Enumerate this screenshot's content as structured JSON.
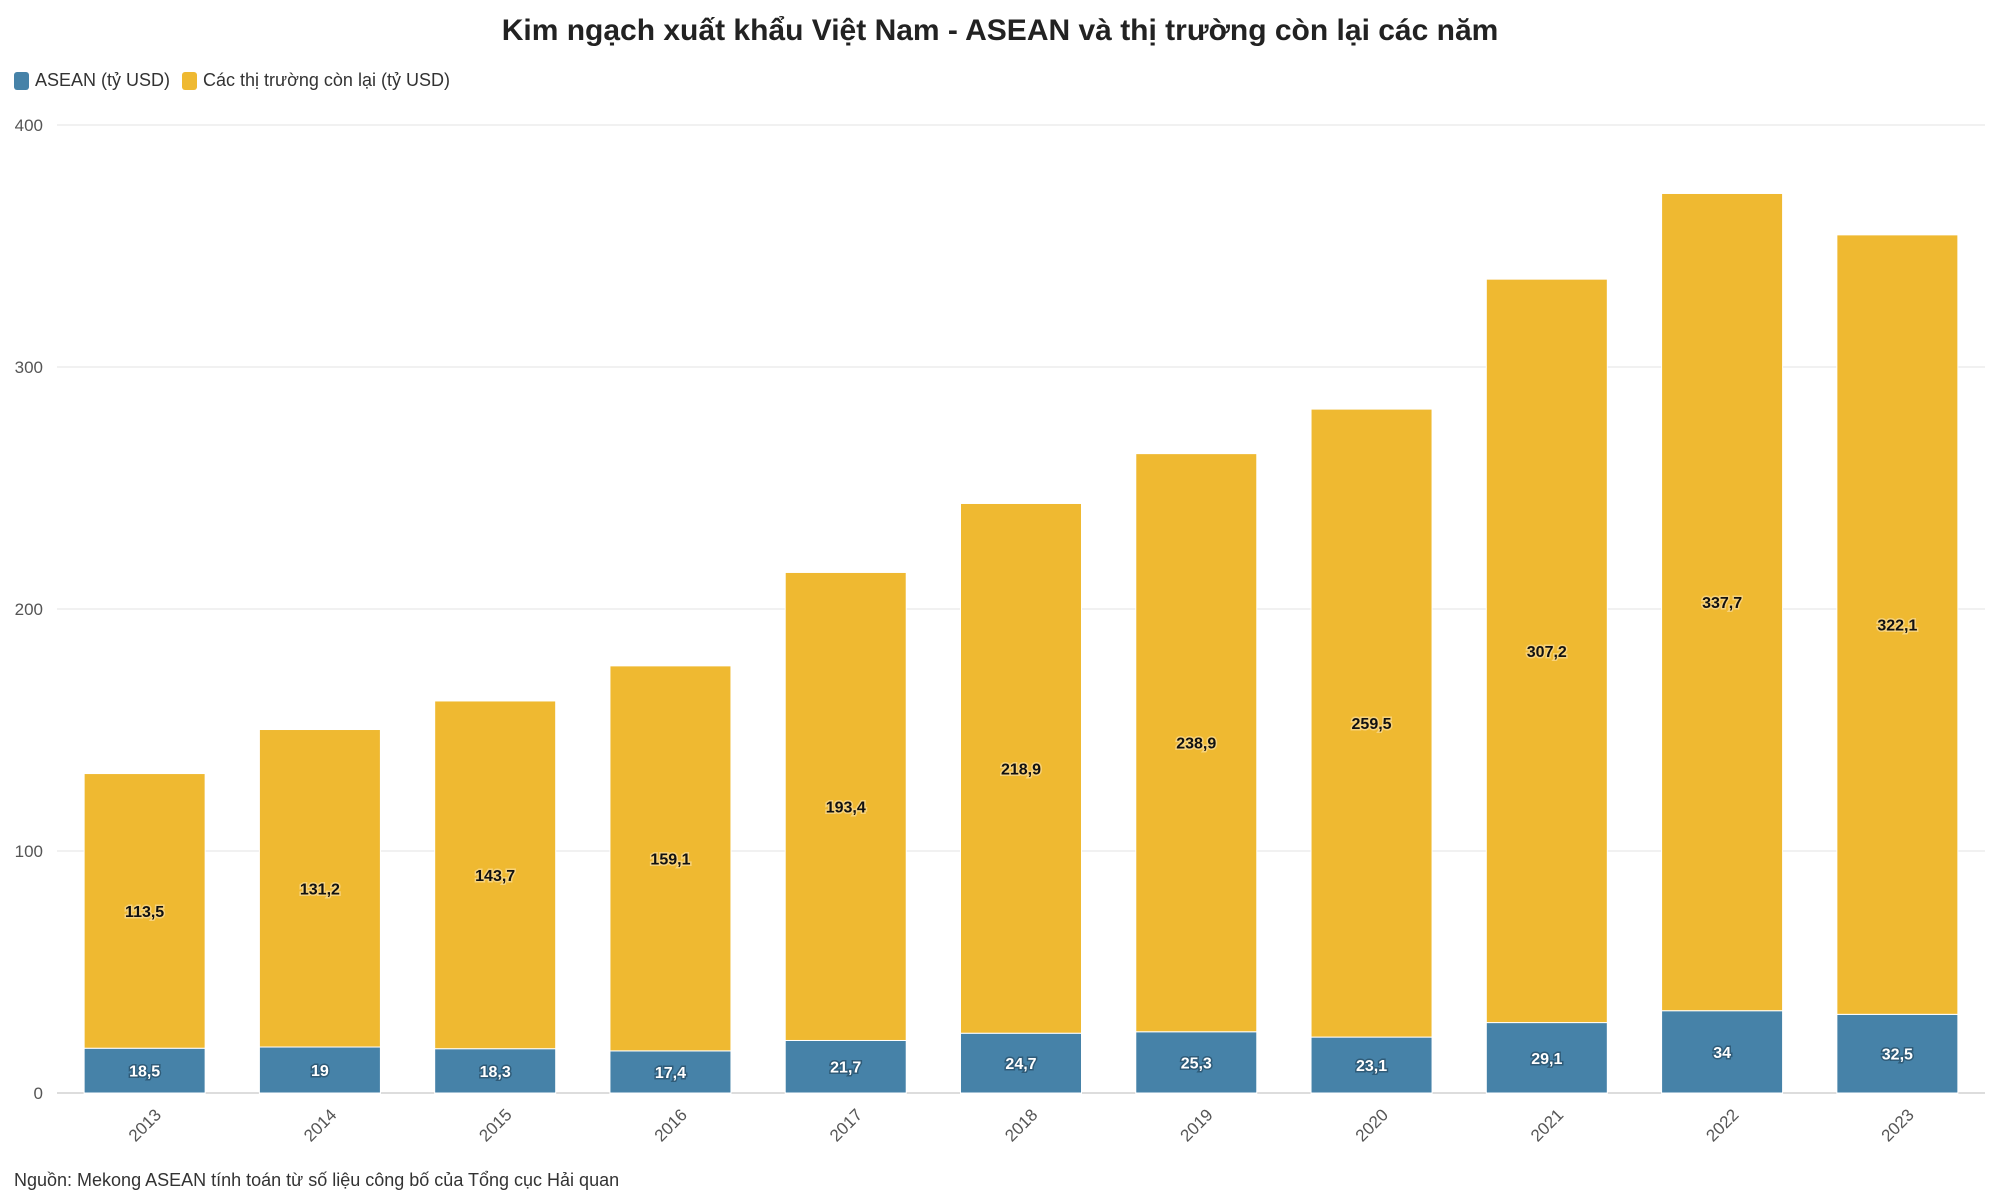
{
  "chart_data": {
    "type": "bar",
    "stacked": true,
    "title": "Kim ngạch xuất khẩu Việt Nam - ASEAN và thị trường còn lại các năm",
    "categories": [
      "2013",
      "2014",
      "2015",
      "2016",
      "2017",
      "2018",
      "2019",
      "2020",
      "2021",
      "2022",
      "2023"
    ],
    "series": [
      {
        "name": "ASEAN (tỷ USD)",
        "color": "#4682A8",
        "values": [
          18.5,
          19,
          18.3,
          17.4,
          21.7,
          24.7,
          25.3,
          23.1,
          29.1,
          34,
          32.5
        ],
        "labels": [
          "18,5",
          "19",
          "18,3",
          "17,4",
          "21,7",
          "24,7",
          "25,3",
          "23,1",
          "29,1",
          "34",
          "32,5"
        ]
      },
      {
        "name": "Các thị trường còn lại (tỷ USD)",
        "color": "#EFB931",
        "values": [
          113.5,
          131.2,
          143.7,
          159.1,
          193.4,
          218.9,
          238.9,
          259.5,
          307.2,
          337.7,
          322.1
        ],
        "labels": [
          "113,5",
          "131,2",
          "143,7",
          "159,1",
          "193,4",
          "218,9",
          "238,9",
          "259,5",
          "307,2",
          "337,7",
          "322,1"
        ]
      }
    ],
    "ylim": [
      0,
      400
    ],
    "yticks": [
      0,
      100,
      200,
      300,
      400
    ],
    "xlabel": "",
    "ylabel": "",
    "grid": true,
    "legend": "top-left"
  },
  "source": "Nguồn: Mekong ASEAN tính toán từ số liệu công bố của Tổng cục Hải quan"
}
